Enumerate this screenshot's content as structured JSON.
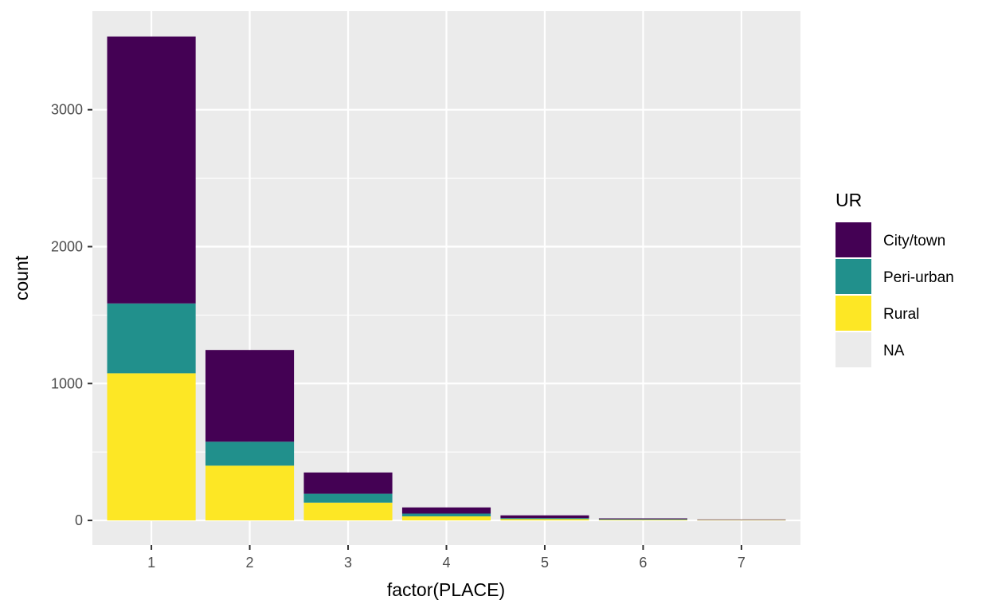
{
  "chart_data": {
    "type": "bar",
    "stacked": true,
    "categories": [
      "1",
      "2",
      "3",
      "4",
      "5",
      "6",
      "7"
    ],
    "series": [
      {
        "name": "City/town",
        "color": "#440154",
        "values": [
          1950,
          670,
          155,
          45,
          20,
          6,
          3
        ]
      },
      {
        "name": "Peri-urban",
        "color": "#21908C",
        "values": [
          510,
          175,
          65,
          20,
          7,
          4,
          1
        ]
      },
      {
        "name": "Rural",
        "color": "#FDE725",
        "values": [
          1075,
          400,
          130,
          30,
          10,
          5,
          3
        ]
      },
      {
        "name": "NA",
        "color": "#EBEBEB",
        "values": [
          0,
          0,
          0,
          0,
          0,
          0,
          0
        ]
      }
    ],
    "xlabel": "factor(PLACE)",
    "ylabel": "count",
    "yticks": [
      0,
      1000,
      2000,
      3000
    ],
    "ylim": [
      -180,
      3720
    ],
    "legend": {
      "title": "UR",
      "placement": "right"
    },
    "grid": true,
    "panel_color": "#EBEBEB"
  }
}
